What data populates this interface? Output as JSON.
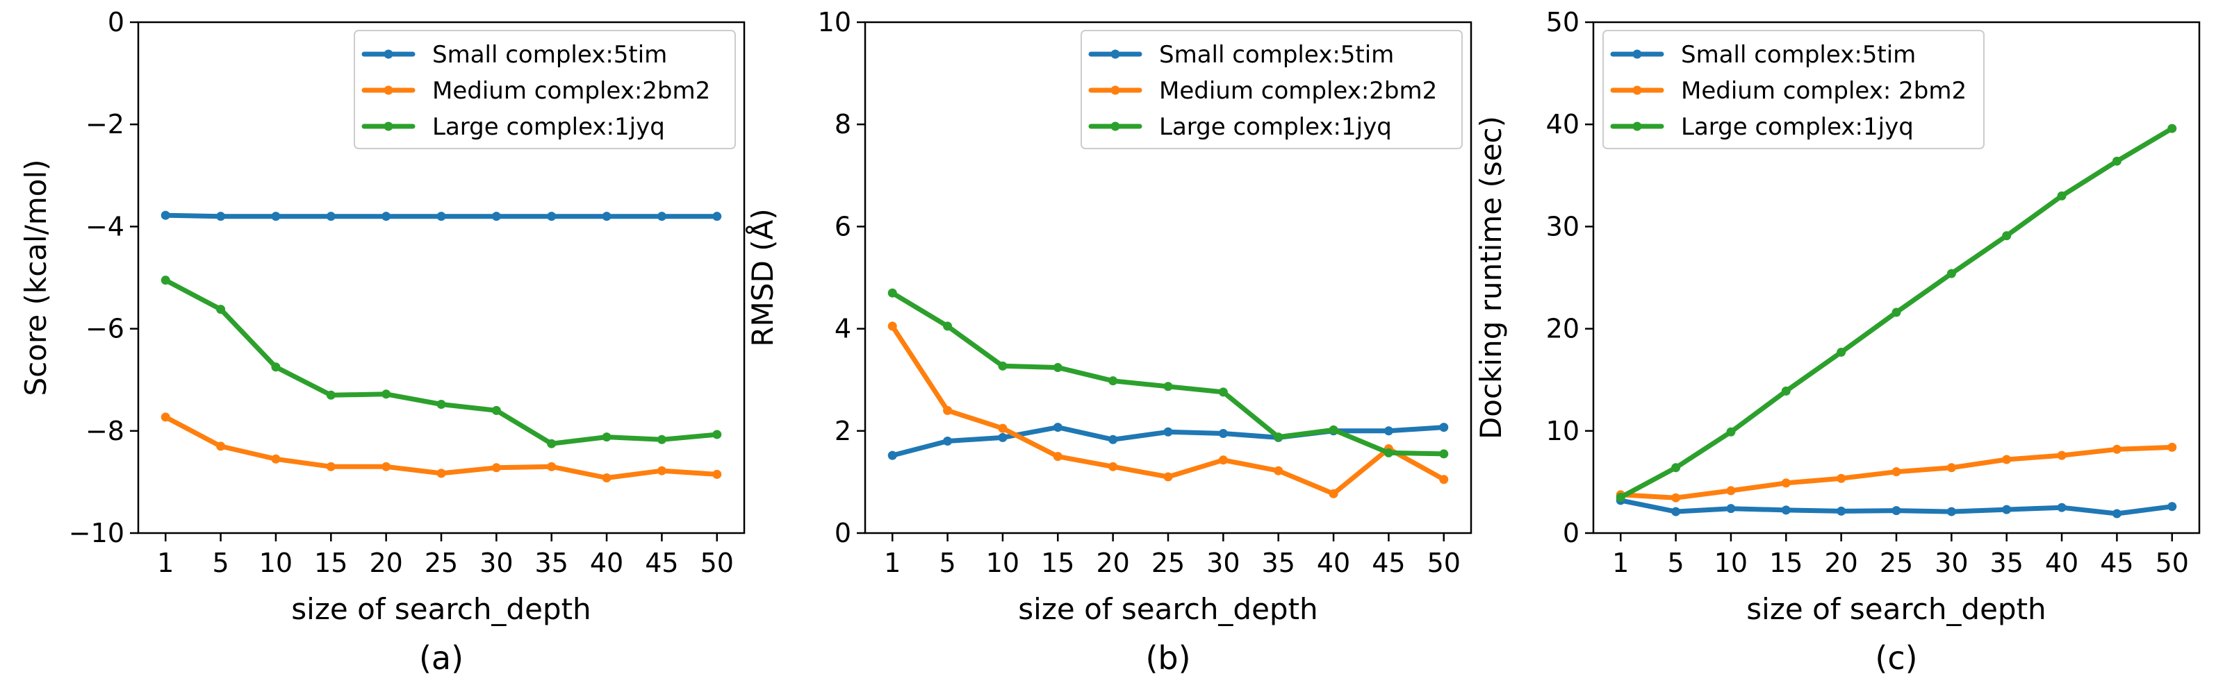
{
  "chart_data": [
    {
      "type": "line",
      "panel_label": "(a)",
      "xlabel": "size of search_depth",
      "ylabel": "Score (kcal/mol)",
      "categories": [
        "1",
        "5",
        "10",
        "15",
        "20",
        "25",
        "30",
        "35",
        "40",
        "45",
        "50"
      ],
      "ylim": [
        -10,
        0
      ],
      "yticks": [
        "0",
        "−2",
        "−4",
        "−6",
        "−8",
        "−10"
      ],
      "ytick_values": [
        0,
        -2,
        -4,
        -6,
        -8,
        -10
      ],
      "legend_position": "top-right",
      "series": [
        {
          "name": "Small complex:5tim",
          "color": "#1f77b4",
          "values": [
            -3.78,
            -3.8,
            -3.8,
            -3.8,
            -3.8,
            -3.8,
            -3.8,
            -3.8,
            -3.8,
            -3.8,
            -3.8
          ]
        },
        {
          "name": "Medium complex:2bm2",
          "color": "#ff7f0e",
          "values": [
            -7.73,
            -8.3,
            -8.55,
            -8.7,
            -8.7,
            -8.83,
            -8.72,
            -8.7,
            -8.92,
            -8.78,
            -8.85
          ]
        },
        {
          "name": "Large complex:1jyq",
          "color": "#2ca02c",
          "values": [
            -5.05,
            -5.62,
            -6.75,
            -7.3,
            -7.28,
            -7.48,
            -7.6,
            -8.25,
            -8.12,
            -8.17,
            -8.07
          ]
        }
      ]
    },
    {
      "type": "line",
      "panel_label": "(b)",
      "xlabel": "size of search_depth",
      "ylabel": "RMSD (Å)",
      "categories": [
        "1",
        "5",
        "10",
        "15",
        "20",
        "25",
        "30",
        "35",
        "40",
        "45",
        "50"
      ],
      "ylim": [
        0,
        10
      ],
      "yticks": [
        "0",
        "2",
        "4",
        "6",
        "8",
        "10"
      ],
      "ytick_values": [
        0,
        2,
        4,
        6,
        8,
        10
      ],
      "legend_position": "top-right",
      "series": [
        {
          "name": "Small complex:5tim",
          "color": "#1f77b4",
          "values": [
            1.52,
            1.8,
            1.87,
            2.07,
            1.83,
            1.98,
            1.95,
            1.87,
            2.0,
            2.0,
            2.07
          ]
        },
        {
          "name": "Medium complex:2bm2",
          "color": "#ff7f0e",
          "values": [
            4.05,
            2.4,
            2.05,
            1.5,
            1.3,
            1.1,
            1.43,
            1.22,
            0.77,
            1.65,
            1.05
          ]
        },
        {
          "name": "Large complex:1jyq",
          "color": "#2ca02c",
          "values": [
            4.7,
            4.05,
            3.27,
            3.24,
            2.98,
            2.87,
            2.76,
            1.88,
            2.02,
            1.57,
            1.55
          ]
        }
      ]
    },
    {
      "type": "line",
      "panel_label": "(c)",
      "xlabel": "size of search_depth",
      "ylabel": "Docking runtime (sec)",
      "categories": [
        "1",
        "5",
        "10",
        "15",
        "20",
        "25",
        "30",
        "35",
        "40",
        "45",
        "50"
      ],
      "ylim": [
        0,
        50
      ],
      "yticks": [
        "0",
        "10",
        "20",
        "30",
        "40",
        "50"
      ],
      "ytick_values": [
        0,
        10,
        20,
        30,
        40,
        50
      ],
      "legend_position": "top-left",
      "series": [
        {
          "name": "Small complex:5tim",
          "color": "#1f77b4",
          "values": [
            3.2,
            2.1,
            2.4,
            2.25,
            2.15,
            2.2,
            2.1,
            2.3,
            2.5,
            1.9,
            2.6
          ]
        },
        {
          "name": "Medium complex: 2bm2",
          "color": "#ff7f0e",
          "values": [
            3.75,
            3.45,
            4.15,
            4.9,
            5.35,
            6.0,
            6.4,
            7.2,
            7.6,
            8.2,
            8.4
          ]
        },
        {
          "name": "Large complex:1jyq",
          "color": "#2ca02c",
          "values": [
            3.5,
            6.4,
            9.9,
            13.9,
            17.7,
            21.6,
            25.4,
            29.1,
            33.0,
            36.4,
            39.6
          ]
        }
      ]
    }
  ]
}
